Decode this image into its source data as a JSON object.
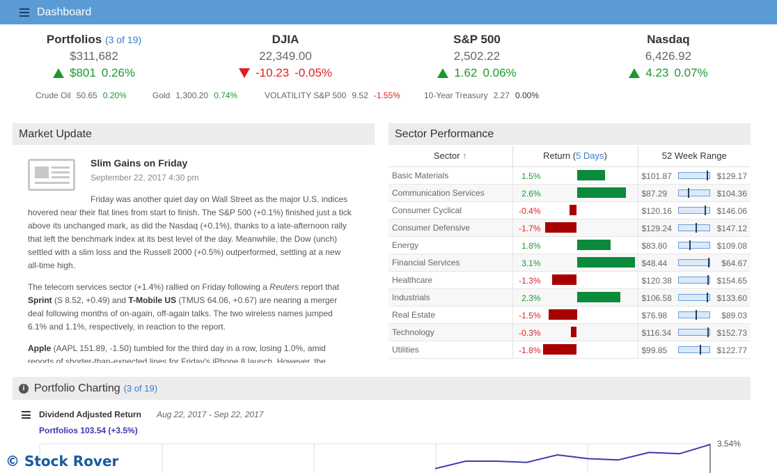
{
  "topbar": {
    "title": "Dashboard"
  },
  "tickers": [
    {
      "name": "Portfolios",
      "sub": "(3 of 19)",
      "value": "$311,682",
      "change": "$801",
      "pct": "0.26%",
      "dir": "up"
    },
    {
      "name": "DJIA",
      "sub": "",
      "value": "22,349.00",
      "change": "-10.23",
      "pct": "-0.05%",
      "dir": "down"
    },
    {
      "name": "S&P 500",
      "sub": "",
      "value": "2,502.22",
      "change": "1.62",
      "pct": "0.06%",
      "dir": "up"
    },
    {
      "name": "Nasdaq",
      "sub": "",
      "value": "6,426.92",
      "change": "4.23",
      "pct": "0.07%",
      "dir": "up"
    }
  ],
  "commodities": [
    {
      "name": "Crude Oil",
      "value": "50.65",
      "pct": "0.20%",
      "dir": "up"
    },
    {
      "name": "Gold",
      "value": "1,300.20",
      "pct": "0.74%",
      "dir": "up"
    },
    {
      "name": "VOLATILITY S&P 500",
      "value": "9.52",
      "pct": "-1.55%",
      "dir": "down"
    },
    {
      "name": "10-Year Treasury",
      "value": "2.27",
      "pct": "0.00%",
      "dir": "flat"
    }
  ],
  "market_update": {
    "header": "Market Update",
    "title": "Slim Gains on Friday",
    "date": "September 22, 2017 4:30 pm",
    "p1": "Friday was another quiet day on Wall Street as the major U.S. indices hovered near their flat lines from start to finish. The S&P 500 (+0.1%) finished just a tick above its unchanged mark, as did the Nasdaq (+0.1%), thanks to a late-afternoon rally that left the benchmark index at its best level of the day. Meanwhile, the Dow (unch) settled with a slim loss and the Russell 2000 (+0.5%) outperformed, settling at a new all-time high.",
    "p2a": "The telecom services sector (+1.4%) rallied on Friday following a ",
    "p2b": "Reuters",
    "p2c": " report that ",
    "p2d": "Sprint",
    "p2e": " (S 8.52, +0.49) and ",
    "p2f": "T-Mobile US",
    "p2g": " (TMUS 64.06, +0.67) are nearing a merger deal following months of on-again, off-again talks. The two wireless names jumped 6.1% and 1.1%, respectively, in reaction to the report.",
    "p3a": "Apple",
    "p3b": " (AAPL 151.89, -1.50) tumbled for the third day in a row, losing 1.0%, amid reports of shorter-than-expected lines for Friday's iPhone 8 launch. However, the"
  },
  "sector": {
    "header": "Sector Performance",
    "col_sector": "Sector",
    "sort_icon": "↑",
    "col_return": "Return (",
    "col_return_link": "5 Days",
    "col_return_end": ")",
    "col_range": "52 Week Range",
    "rows": [
      {
        "name": "Basic Materials",
        "ret": "1.5%",
        "value": 1.5,
        "lo": "$101.87",
        "hi": "$129.17",
        "pos": 0.93
      },
      {
        "name": "Communication Services",
        "ret": "2.6%",
        "value": 2.6,
        "lo": "$87.29",
        "hi": "$104.36",
        "pos": 0.3
      },
      {
        "name": "Consumer Cyclical",
        "ret": "-0.4%",
        "value": -0.4,
        "lo": "$120.16",
        "hi": "$146.06",
        "pos": 0.86
      },
      {
        "name": "Consumer Defensive",
        "ret": "-1.7%",
        "value": -1.7,
        "lo": "$129.24",
        "hi": "$147.12",
        "pos": 0.55
      },
      {
        "name": "Energy",
        "ret": "1.8%",
        "value": 1.8,
        "lo": "$83.80",
        "hi": "$109.08",
        "pos": 0.35
      },
      {
        "name": "Financial Services",
        "ret": "3.1%",
        "value": 3.1,
        "lo": "$48.44",
        "hi": "$64.67",
        "pos": 0.97
      },
      {
        "name": "Healthcare",
        "ret": "-1.3%",
        "value": -1.3,
        "lo": "$120.38",
        "hi": "$154.65",
        "pos": 0.94
      },
      {
        "name": "Industrials",
        "ret": "2.3%",
        "value": 2.3,
        "lo": "$106.58",
        "hi": "$133.60",
        "pos": 0.93
      },
      {
        "name": "Real Estate",
        "ret": "-1.5%",
        "value": -1.5,
        "lo": "$76.98",
        "hi": "$89.03",
        "pos": 0.55
      },
      {
        "name": "Technology",
        "ret": "-0.3%",
        "value": -0.3,
        "lo": "$116.34",
        "hi": "$152.73",
        "pos": 0.94
      },
      {
        "name": "Utilities",
        "ret": "-1.8%",
        "value": -1.8,
        "lo": "$99.85",
        "hi": "$122.77",
        "pos": 0.7
      }
    ]
  },
  "portfolio_charting": {
    "header": "Portfolio Charting",
    "sub": "(3 of 19)",
    "chart_title": "Dividend Adjusted Return",
    "date_range": "Aug 22, 2017 - Sep 22, 2017",
    "series_label": "Portfolios 103.54 (+3.5%)",
    "end_label": "3.54%"
  },
  "chart_data": {
    "type": "line",
    "title": "Dividend Adjusted Return",
    "series": [
      {
        "name": "Portfolios",
        "values": [
          1.6,
          2.2,
          2.2,
          2.1,
          2.7,
          2.4,
          2.3,
          2.9,
          2.8,
          3.54
        ]
      }
    ],
    "end_value": 3.54
  },
  "watermark": "© Stock Rover",
  "colors": {
    "header_bar": "#5b9bd5",
    "up": "#1a9a2e",
    "down": "#e02020",
    "bar_pos": "#0a8a3a",
    "bar_neg": "#a80000",
    "link": "#3a7bc8"
  }
}
